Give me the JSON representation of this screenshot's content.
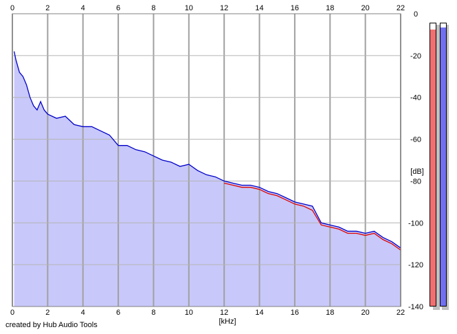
{
  "chart_data": {
    "type": "area",
    "xlabel": "[kHz]",
    "ylabel": "[dB]",
    "xlim": [
      0,
      22
    ],
    "ylim": [
      -140,
      0
    ],
    "x_ticks": [
      0,
      2,
      4,
      6,
      8,
      10,
      12,
      14,
      16,
      18,
      20,
      22
    ],
    "y_ticks": [
      0,
      -20,
      -40,
      -60,
      -80,
      -100,
      -120,
      -140
    ],
    "x_tick_labels": [
      "0",
      "2",
      "4",
      "6",
      "8",
      "10",
      "12",
      "14",
      "16",
      "18",
      "20",
      "22"
    ],
    "y_tick_labels": [
      "0",
      "-20",
      "-40",
      "-60",
      "-80",
      "-100",
      "-120",
      "-140"
    ],
    "grid": true,
    "fill_color": "#c8c8fa",
    "series": [
      {
        "color": "#0000c8",
        "x": [
          0.1,
          0.2,
          0.4,
          0.6,
          0.8,
          1.0,
          1.2,
          1.4,
          1.6,
          1.8,
          2.0,
          2.5,
          3.0,
          3.5,
          4.0,
          4.5,
          5.0,
          5.5,
          6.0,
          6.5,
          7.0,
          7.5,
          8.0,
          8.5,
          9.0,
          9.5,
          10.0,
          10.5,
          11.0,
          11.5,
          12.0,
          12.5,
          13.0,
          13.5,
          14.0,
          14.5,
          15.0,
          15.5,
          16.0,
          16.5,
          17.0,
          17.5,
          18.0,
          18.5,
          19.0,
          19.5,
          20.0,
          20.5,
          21.0,
          21.5,
          22.0
        ],
        "y": [
          -18,
          -22,
          -28,
          -30,
          -34,
          -40,
          -44,
          -46,
          -42,
          -46,
          -48,
          -50,
          -49,
          -53,
          -54,
          -54,
          -56,
          -58,
          -63,
          -63,
          -65,
          -66,
          -68,
          -70,
          -71,
          -73,
          -72,
          -75,
          -77,
          -78,
          -80,
          -81,
          -82,
          -82,
          -83,
          -85,
          -86,
          -88,
          -90,
          -91,
          -92,
          -100,
          -101,
          -102,
          -104,
          -104,
          -105,
          -104,
          -107,
          -109,
          -112
        ]
      },
      {
        "color": "#e00000",
        "x": [
          12.0,
          12.5,
          13.0,
          13.5,
          14.0,
          14.5,
          15.0,
          15.5,
          16.0,
          16.5,
          17.0,
          17.5,
          18.0,
          18.5,
          19.0,
          19.5,
          20.0,
          20.5,
          21.0,
          21.5,
          22.0
        ],
        "y": [
          -81,
          -82,
          -83,
          -83,
          -84,
          -86,
          -87,
          -89,
          -91,
          -92,
          -94,
          -101,
          -102,
          -103,
          -105,
          -105,
          -106,
          -105,
          -108,
          -110,
          -113
        ]
      }
    ],
    "meters": [
      {
        "color": "#f07070",
        "level_db": -3
      },
      {
        "color": "#7070f0",
        "level_db": -2
      }
    ]
  },
  "credit": "created by Hub Audio Tools"
}
